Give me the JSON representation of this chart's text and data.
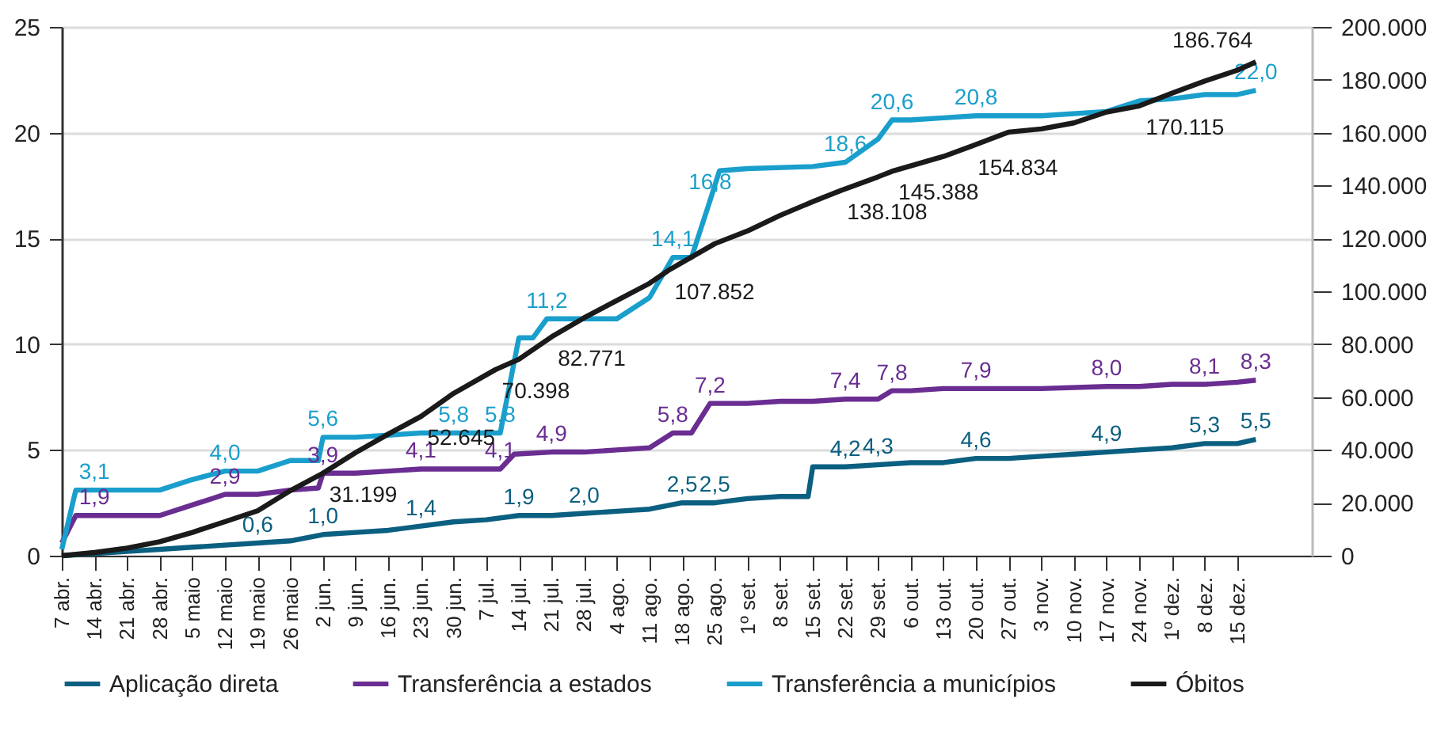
{
  "chart_data": {
    "type": "line",
    "xlim": [
      "--04-07",
      "--12-31"
    ],
    "xticks": [
      {
        "value": "--04-07",
        "label": "7 abr."
      },
      {
        "value": "--04-14",
        "label": "14 abr."
      },
      {
        "value": "--04-21",
        "label": "21 abr."
      },
      {
        "value": "--04-28",
        "label": "28 abr."
      },
      {
        "value": "--05-05",
        "label": "5 maio"
      },
      {
        "value": "--05-12",
        "label": "12 maio"
      },
      {
        "value": "--05-19",
        "label": "19 maio"
      },
      {
        "value": "--05-26",
        "label": "26 maio"
      },
      {
        "value": "--06-02",
        "label": "2 jun."
      },
      {
        "value": "--06-09",
        "label": "9 jun."
      },
      {
        "value": "--06-16",
        "label": "16 jun."
      },
      {
        "value": "--06-23",
        "label": "23 jun."
      },
      {
        "value": "--06-30",
        "label": "30 jun."
      },
      {
        "value": "--07-07",
        "label": "7 jul."
      },
      {
        "value": "--07-14",
        "label": "14 jul."
      },
      {
        "value": "--07-21",
        "label": "21 jul."
      },
      {
        "value": "--07-28",
        "label": "28 jul."
      },
      {
        "value": "--08-04",
        "label": "4 ago."
      },
      {
        "value": "--08-11",
        "label": "11 ago."
      },
      {
        "value": "--08-18",
        "label": "18 ago."
      },
      {
        "value": "--08-25",
        "label": "25 ago."
      },
      {
        "value": "--09-01",
        "label": "1º set."
      },
      {
        "value": "--09-08",
        "label": "8 set."
      },
      {
        "value": "--09-15",
        "label": "15 set."
      },
      {
        "value": "--09-22",
        "label": "22 set."
      },
      {
        "value": "--09-29",
        "label": "29 set."
      },
      {
        "value": "--10-06",
        "label": "6 out."
      },
      {
        "value": "--10-13",
        "label": "13 out."
      },
      {
        "value": "--10-20",
        "label": "20 out."
      },
      {
        "value": "--10-27",
        "label": "27 out."
      },
      {
        "value": "--11-03",
        "label": "3 nov."
      },
      {
        "value": "--11-10",
        "label": "10 nov."
      },
      {
        "value": "--11-17",
        "label": "17 nov."
      },
      {
        "value": "--11-24",
        "label": "24 nov."
      },
      {
        "value": "--12-01",
        "label": "1º dez."
      },
      {
        "value": "--12-08",
        "label": "8 dez."
      },
      {
        "value": "--12-15",
        "label": "15 dez."
      }
    ],
    "ylim": [
      0,
      25
    ],
    "yticks": [
      0,
      5,
      10,
      15,
      20,
      25
    ],
    "y2lim": [
      0,
      200000
    ],
    "y2ticks": [
      0,
      {
        "value": 20000,
        "label": "20.000"
      },
      {
        "value": 40000,
        "label": "40.000"
      },
      {
        "value": 60000,
        "label": "60.000"
      },
      {
        "value": 80000,
        "label": "80.000"
      },
      {
        "value": 100000,
        "label": "100.000"
      },
      {
        "value": 120000,
        "label": "120.000"
      },
      {
        "value": 140000,
        "label": "140.000"
      },
      {
        "value": 160000,
        "label": "160.000"
      },
      {
        "value": 180000,
        "label": "180.000"
      },
      {
        "value": 200000,
        "label": "200.000"
      }
    ],
    "grid": "y",
    "legend": "bottom",
    "series": [
      {
        "name": "Aplicação direta",
        "color": "#0b5f80",
        "x": [
          "--04-07",
          "--04-14",
          "--04-21",
          "--04-28",
          "--05-05",
          "--05-12",
          "--05-19",
          "--05-26",
          "--06-02",
          "--06-09",
          "--06-16",
          "--06-23",
          "--06-30",
          "--07-07",
          "--07-14",
          "--07-21",
          "--07-28",
          "--08-04",
          "--08-11",
          "--08-18",
          "--08-25",
          "--09-01",
          "--09-08",
          "--09-14",
          "--09-15",
          "--09-22",
          "--09-29",
          "--10-06",
          "--10-13",
          "--10-20",
          "--10-27",
          "--11-03",
          "--11-10",
          "--11-17",
          "--11-24",
          "--12-01",
          "--12-08",
          "--12-15",
          "--12-19"
        ],
        "values": [
          0,
          0.1,
          0.2,
          0.3,
          0.4,
          0.5,
          0.6,
          0.7,
          1.0,
          1.1,
          1.2,
          1.4,
          1.6,
          1.7,
          1.9,
          1.9,
          2.0,
          2.1,
          2.2,
          2.5,
          2.5,
          2.7,
          2.8,
          2.8,
          4.2,
          4.2,
          4.3,
          4.4,
          4.4,
          4.6,
          4.6,
          4.7,
          4.8,
          4.9,
          5.0,
          5.1,
          5.3,
          5.3,
          5.5
        ],
        "value_labels": [
          null,
          null,
          null,
          null,
          null,
          null,
          "0,6",
          null,
          "1,0",
          null,
          null,
          "1,4",
          null,
          null,
          "1,9",
          null,
          "2,0",
          null,
          null,
          "2,5",
          "2,5",
          null,
          null,
          null,
          null,
          "4,2",
          "4,3",
          null,
          null,
          "4,6",
          null,
          null,
          null,
          "4,9",
          null,
          null,
          "5,3",
          null,
          "5,5"
        ]
      },
      {
        "name": "Transferência a estados",
        "color": "#6a2d91",
        "x": [
          "--04-07",
          "--04-10",
          "--04-14",
          "--04-21",
          "--04-28",
          "--05-05",
          "--05-12",
          "--05-19",
          "--05-26",
          "--06-01",
          "--06-02",
          "--06-09",
          "--06-16",
          "--06-23",
          "--06-30",
          "--07-10",
          "--07-13",
          "--07-21",
          "--07-28",
          "--08-04",
          "--08-11",
          "--08-16",
          "--08-20",
          "--08-24",
          "--09-01",
          "--09-08",
          "--09-15",
          "--09-22",
          "--09-29",
          "--10-02",
          "--10-06",
          "--10-13",
          "--10-20",
          "--11-03",
          "--11-17",
          "--11-24",
          "--12-01",
          "--12-08",
          "--12-15",
          "--12-19"
        ],
        "values": [
          0.6,
          1.9,
          1.9,
          1.9,
          1.9,
          2.4,
          2.9,
          2.9,
          3.1,
          3.2,
          3.9,
          3.9,
          4.0,
          4.1,
          4.1,
          4.1,
          4.8,
          4.9,
          4.9,
          5.0,
          5.1,
          5.8,
          5.8,
          7.2,
          7.2,
          7.3,
          7.3,
          7.4,
          7.4,
          7.8,
          7.8,
          7.9,
          7.9,
          7.9,
          8.0,
          8.0,
          8.1,
          8.1,
          8.2,
          8.3
        ],
        "value_labels": [
          null,
          null,
          "1,9",
          null,
          null,
          null,
          "2,9",
          null,
          null,
          null,
          "3,9",
          null,
          null,
          "4,1",
          null,
          "4,1",
          null,
          "4,9",
          null,
          null,
          null,
          "5,8",
          null,
          "7,2",
          null,
          null,
          null,
          "7,4",
          null,
          "7,8",
          null,
          null,
          "7,9",
          null,
          "8,0",
          null,
          null,
          "8,1",
          null,
          "8,3"
        ]
      },
      {
        "name": "Transferência a municípios",
        "color": "#1a9fcc",
        "x": [
          "--04-07",
          "--04-10",
          "--04-14",
          "--04-21",
          "--04-28",
          "--05-05",
          "--05-12",
          "--05-19",
          "--05-26",
          "--06-01",
          "--06-02",
          "--06-09",
          "--06-16",
          "--06-23",
          "--06-30",
          "--07-10",
          "--07-14",
          "--07-17",
          "--07-20",
          "--07-28",
          "--08-04",
          "--08-11",
          "--08-16",
          "--08-20",
          "--08-24",
          "--08-26",
          "--09-01",
          "--09-15",
          "--09-22",
          "--09-29",
          "--10-02",
          "--10-06",
          "--10-13",
          "--10-20",
          "--11-03",
          "--11-17",
          "--11-24",
          "--12-01",
          "--12-08",
          "--12-15",
          "--12-19"
        ],
        "values": [
          0.3,
          3.1,
          3.1,
          3.1,
          3.1,
          3.6,
          4.0,
          4.0,
          4.5,
          4.5,
          5.6,
          5.6,
          5.7,
          5.8,
          5.8,
          5.8,
          10.3,
          10.3,
          11.2,
          11.2,
          11.2,
          12.2,
          14.1,
          14.1,
          16.8,
          18.2,
          18.3,
          18.4,
          18.6,
          19.7,
          20.6,
          20.6,
          20.7,
          20.8,
          20.8,
          21.0,
          21.5,
          21.6,
          21.8,
          21.8,
          22.0
        ],
        "value_labels": [
          null,
          null,
          "3,1",
          null,
          null,
          null,
          "4,0",
          null,
          null,
          null,
          "5,6",
          null,
          null,
          null,
          "5,8",
          "5,8",
          null,
          null,
          "11,2",
          null,
          null,
          null,
          "14,1",
          null,
          "16,8",
          null,
          null,
          null,
          "18,6",
          null,
          "20,6",
          null,
          null,
          "20,8",
          null,
          null,
          null,
          null,
          null,
          null,
          "22,0"
        ]
      },
      {
        "name": "Óbitos",
        "color": "#1a1a1a",
        "axis": "y2",
        "x": [
          "--04-07",
          "--04-14",
          "--04-21",
          "--04-28",
          "--05-05",
          "--05-12",
          "--05-19",
          "--05-26",
          "--06-02",
          "--06-09",
          "--06-16",
          "--06-23",
          "--06-30",
          "--07-09",
          "--07-14",
          "--07-21",
          "--07-28",
          "--08-04",
          "--08-11",
          "--08-15",
          "--08-25",
          "--09-01",
          "--09-08",
          "--09-15",
          "--09-21",
          "--09-29",
          "--10-02",
          "--10-13",
          "--10-19",
          "--10-27",
          "--11-03",
          "--11-10",
          "--11-17",
          "--11-24",
          "--12-01",
          "--12-08",
          "--12-15",
          "--12-19"
        ],
        "values": [
          0,
          1200,
          2900,
          5300,
          8800,
          12900,
          17000,
          24600,
          31199,
          39000,
          46000,
          52645,
          61400,
          70398,
          74300,
          82771,
          90000,
          96500,
          103000,
          107852,
          118000,
          122800,
          128700,
          133900,
          138108,
          143300,
          145388,
          151000,
          154834,
          160200,
          161400,
          163700,
          167800,
          170115,
          174900,
          179500,
          183600,
          186764
        ],
        "value_labels": [
          null,
          null,
          null,
          null,
          null,
          null,
          null,
          null,
          "31.199",
          null,
          null,
          "52.645",
          null,
          "70.398",
          null,
          "82.771",
          null,
          null,
          null,
          "107.852",
          null,
          null,
          null,
          null,
          "138.108",
          null,
          "145.388",
          null,
          "154.834",
          null,
          null,
          null,
          null,
          "170.115",
          null,
          null,
          null,
          "186.764"
        ]
      }
    ]
  }
}
